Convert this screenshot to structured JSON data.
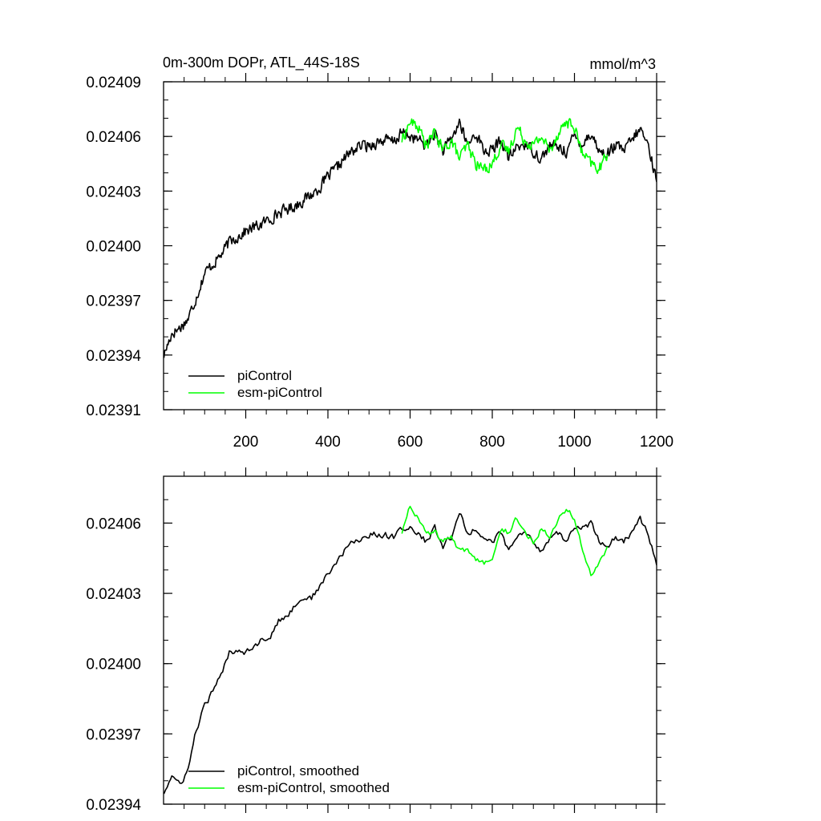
{
  "chart_data": [
    {
      "type": "line",
      "title": "0m-300m DOPr, ATL_44S-18S",
      "units": "mmol/m^3",
      "xlim": [
        0,
        1200
      ],
      "ylim": [
        0.02391,
        0.02409
      ],
      "x_ticks": [
        200,
        400,
        600,
        800,
        1000,
        1200
      ],
      "x_tick_labels": [
        "200",
        "400",
        "600",
        "800",
        "1000",
        "1200"
      ],
      "y_ticks": [
        0.02391,
        0.02394,
        0.02397,
        0.024,
        0.02403,
        0.02406,
        0.02409
      ],
      "y_tick_labels": [
        "0.02391",
        "0.02394",
        "0.02397",
        "0.02400",
        "0.02403",
        "0.02406",
        "0.02409"
      ],
      "legend_position": "bottom-left",
      "series": [
        {
          "name": "piControl",
          "color": "#000000",
          "x": [
            1,
            20,
            40,
            60,
            80,
            100,
            120,
            140,
            160,
            180,
            200,
            220,
            240,
            260,
            280,
            300,
            320,
            340,
            360,
            380,
            400,
            420,
            440,
            460,
            480,
            500,
            520,
            540,
            560,
            580,
            600,
            620,
            640,
            660,
            680,
            700,
            720,
            740,
            760,
            780,
            800,
            820,
            840,
            860,
            880,
            900,
            920,
            940,
            960,
            980,
            1000,
            1020,
            1040,
            1060,
            1080,
            1100,
            1120,
            1140,
            1160,
            1180,
            1200
          ],
          "y": [
            0.02394,
            0.023952,
            0.023955,
            0.02396,
            0.023972,
            0.023985,
            0.02399,
            0.023995,
            0.024002,
            0.024005,
            0.024008,
            0.02401,
            0.024012,
            0.024015,
            0.024018,
            0.02402,
            0.024022,
            0.024025,
            0.024028,
            0.024032,
            0.024038,
            0.024042,
            0.024048,
            0.024052,
            0.024055,
            0.024055,
            0.024057,
            0.024058,
            0.024057,
            0.024062,
            0.02406,
            0.024058,
            0.024055,
            0.024062,
            0.024052,
            0.024058,
            0.024068,
            0.024055,
            0.024062,
            0.024052,
            0.024052,
            0.024058,
            0.024048,
            0.024054,
            0.024056,
            0.024052,
            0.024048,
            0.024055,
            0.024054,
            0.024052,
            0.02406,
            0.024056,
            0.024062,
            0.024052,
            0.02405,
            0.024055,
            0.024052,
            0.024058,
            0.024064,
            0.024055,
            0.024035
          ]
        },
        {
          "name": "esm-piControl",
          "color": "#00ff00",
          "x": [
            580,
            600,
            620,
            640,
            660,
            680,
            700,
            720,
            740,
            760,
            780,
            800,
            820,
            840,
            860,
            880,
            900,
            920,
            940,
            960,
            980,
            1000,
            1020,
            1040,
            1060,
            1080
          ],
          "y": [
            0.024058,
            0.024068,
            0.024065,
            0.024055,
            0.024062,
            0.024052,
            0.024058,
            0.024048,
            0.024055,
            0.024045,
            0.024042,
            0.024045,
            0.024055,
            0.024052,
            0.024065,
            0.024058,
            0.024055,
            0.02406,
            0.024052,
            0.024062,
            0.024068,
            0.024065,
            0.02405,
            0.024045,
            0.024042,
            0.02405
          ]
        }
      ]
    },
    {
      "type": "line",
      "title": "",
      "xlim": [
        0,
        1200
      ],
      "ylim": [
        0.02394,
        0.02408
      ],
      "x_ticks": [
        200,
        400,
        600,
        800,
        1000,
        1200
      ],
      "x_tick_labels": [],
      "y_ticks": [
        0.02394,
        0.02397,
        0.024,
        0.02403,
        0.02406
      ],
      "y_tick_labels": [
        "0.02394",
        "0.02397",
        "0.02400",
        "0.02403",
        "0.02406"
      ],
      "legend_position": "bottom-left",
      "series": [
        {
          "name": "piControl, smoothed",
          "color": "#000000",
          "x": [
            1,
            20,
            40,
            60,
            80,
            100,
            120,
            140,
            160,
            180,
            200,
            220,
            240,
            260,
            280,
            300,
            320,
            340,
            360,
            380,
            400,
            420,
            440,
            460,
            480,
            500,
            520,
            540,
            560,
            580,
            600,
            620,
            640,
            660,
            680,
            700,
            720,
            740,
            760,
            780,
            800,
            820,
            840,
            860,
            880,
            900,
            920,
            940,
            960,
            980,
            1000,
            1020,
            1040,
            1060,
            1080,
            1100,
            1120,
            1140,
            1160,
            1180,
            1200
          ],
          "y": [
            0.023945,
            0.023952,
            0.023948,
            0.023955,
            0.023972,
            0.023982,
            0.023988,
            0.023995,
            0.024005,
            0.024006,
            0.024005,
            0.024008,
            0.02401,
            0.024012,
            0.024018,
            0.02402,
            0.024025,
            0.024028,
            0.024028,
            0.024033,
            0.024038,
            0.024043,
            0.024048,
            0.024052,
            0.024053,
            0.024055,
            0.024055,
            0.024055,
            0.024054,
            0.024058,
            0.024058,
            0.024055,
            0.024052,
            0.024058,
            0.02405,
            0.024054,
            0.024065,
            0.024055,
            0.024058,
            0.024053,
            0.024052,
            0.024056,
            0.024048,
            0.024054,
            0.024056,
            0.024052,
            0.024048,
            0.024054,
            0.024056,
            0.024052,
            0.024058,
            0.024058,
            0.02406,
            0.024052,
            0.02405,
            0.024054,
            0.024052,
            0.024056,
            0.024062,
            0.024055,
            0.024042
          ]
        },
        {
          "name": "esm-piControl, smoothed",
          "color": "#00ff00",
          "x": [
            580,
            600,
            620,
            640,
            660,
            680,
            700,
            720,
            740,
            760,
            780,
            800,
            820,
            840,
            860,
            880,
            900,
            920,
            940,
            960,
            980,
            1000,
            1020,
            1040,
            1060,
            1080
          ],
          "y": [
            0.024056,
            0.024068,
            0.024062,
            0.024055,
            0.024056,
            0.024052,
            0.024054,
            0.024048,
            0.024048,
            0.024045,
            0.024043,
            0.024046,
            0.024058,
            0.024056,
            0.024062,
            0.024056,
            0.024052,
            0.024058,
            0.024055,
            0.024062,
            0.024066,
            0.024062,
            0.024048,
            0.024038,
            0.024042,
            0.02405
          ]
        }
      ]
    }
  ]
}
